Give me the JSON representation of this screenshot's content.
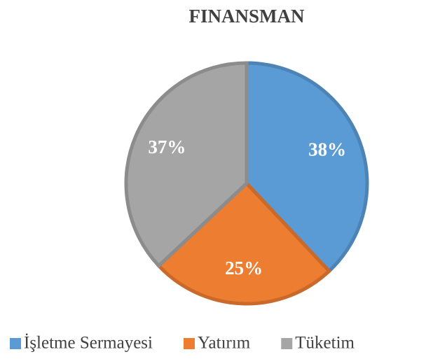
{
  "chart_data": {
    "type": "pie",
    "title": "FINANSMAN",
    "categories": [
      "İşletme Sermayesi",
      "Yatırım",
      "Tüketim"
    ],
    "values": [
      38,
      25,
      37
    ],
    "value_labels": [
      "38%",
      "25%",
      "37%"
    ],
    "colors": [
      "#5b9bd5",
      "#ed7d31",
      "#a5a5a5"
    ],
    "legend": "bottom"
  }
}
